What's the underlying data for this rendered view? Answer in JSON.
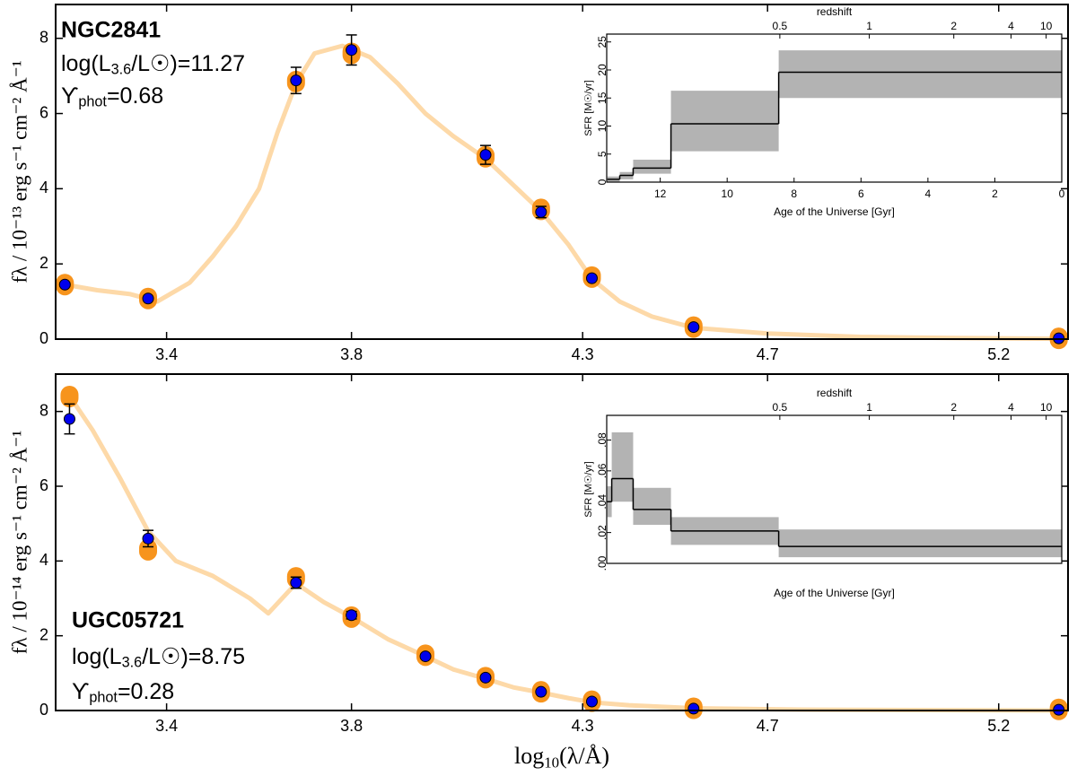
{
  "chart_data": [
    {
      "type": "sed",
      "name_label": "NGC2841",
      "lum_parts": [
        "log(L",
        "3.6",
        "/L☉)=11.27"
      ],
      "ml_parts": [
        "ϒ",
        "phot",
        "=0.68"
      ],
      "ylabel": "fλ / 10⁻¹³ erg s⁻¹ cm⁻² Å⁻¹",
      "xlim": [
        3.16,
        5.35
      ],
      "ylim": [
        0,
        8.9
      ],
      "xticks": [
        3.4,
        3.8,
        4.3,
        4.7,
        5.2
      ],
      "yticks": [
        0,
        2,
        4,
        6,
        8
      ],
      "spectrum": {
        "color": "#fdd9a8",
        "x": [
          3.18,
          3.25,
          3.32,
          3.38,
          3.45,
          3.5,
          3.55,
          3.6,
          3.64,
          3.68,
          3.72,
          3.78,
          3.84,
          3.9,
          3.96,
          4.02,
          4.09,
          4.15,
          4.21,
          4.27,
          4.32,
          4.38,
          4.45,
          4.54,
          4.7,
          4.9,
          5.1,
          5.33
        ],
        "y": [
          1.45,
          1.3,
          1.2,
          1.0,
          1.5,
          2.2,
          3.0,
          4.0,
          5.5,
          6.8,
          7.6,
          7.8,
          7.5,
          6.8,
          6.0,
          5.4,
          4.8,
          4.1,
          3.4,
          2.5,
          1.6,
          1.0,
          0.6,
          0.3,
          0.15,
          0.06,
          0.03,
          0.01
        ]
      },
      "model": {
        "color": "#f7941d",
        "values": [
          1.45,
          1.08,
          6.85,
          7.6,
          4.85,
          3.45,
          1.65,
          0.32,
          0.02
        ]
      },
      "points": {
        "color": "#0000ee",
        "x": [
          3.18,
          3.36,
          3.68,
          3.8,
          4.09,
          4.21,
          4.32,
          4.54,
          5.33
        ],
        "values": [
          1.45,
          1.08,
          6.88,
          7.69,
          4.9,
          3.38,
          1.62,
          0.32,
          0.02
        ],
        "errors": [
          0.05,
          0.05,
          0.35,
          0.4,
          0.25,
          0.15,
          0.05,
          0.03,
          0.01
        ]
      },
      "inset": {
        "type": "step",
        "ylabel": "SFR [M☉/yr]",
        "xlabel": "Age of the Universe [Gyr]",
        "toplabel": "redshift",
        "xlim": [
          13.6,
          0
        ],
        "ylim": [
          0,
          26.4
        ],
        "xticks": [
          12,
          10,
          8,
          6,
          4,
          2,
          0
        ],
        "yticks": [
          0,
          5,
          10,
          15,
          20,
          25
        ],
        "redshift_ticks": [
          0.5,
          1,
          2,
          4,
          10
        ],
        "band_color": "#b3b3b3",
        "line_color": "#000000",
        "bins": [
          13.58,
          13.21,
          12.81,
          11.68,
          8.46,
          0
        ],
        "values": [
          0.5,
          1.2,
          2.5,
          10.4,
          19.6
        ],
        "lower": [
          0,
          0.5,
          1.5,
          5.5,
          15
        ],
        "upper": [
          1,
          1.8,
          4,
          16.3,
          23.5
        ]
      }
    },
    {
      "type": "sed",
      "name_label": "UGC05721",
      "lum_parts": [
        "log(L",
        "3.6",
        "/L☉)=8.75"
      ],
      "ml_parts": [
        "ϒ",
        "phot",
        "=0.28"
      ],
      "ylabel": "fλ / 10⁻¹⁴ erg s⁻¹ cm⁻² Å⁻¹",
      "xlabel_parts": [
        "log",
        "10",
        "(λ/Å)"
      ],
      "xlim": [
        3.16,
        5.35
      ],
      "ylim": [
        0,
        9
      ],
      "xticks": [
        3.4,
        3.8,
        4.3,
        4.7,
        5.2
      ],
      "yticks": [
        0,
        2,
        4,
        6,
        8
      ],
      "spectrum": {
        "color": "#fdd9a8",
        "x": [
          3.18,
          3.24,
          3.3,
          3.36,
          3.42,
          3.5,
          3.58,
          3.62,
          3.68,
          3.74,
          3.8,
          3.88,
          3.96,
          4.02,
          4.09,
          4.15,
          4.21,
          4.27,
          4.32,
          4.4,
          4.54,
          4.8,
          5.33
        ],
        "y": [
          8.6,
          7.5,
          6.2,
          4.8,
          4.0,
          3.6,
          3.0,
          2.6,
          3.4,
          2.9,
          2.5,
          1.9,
          1.45,
          1.1,
          0.85,
          0.62,
          0.48,
          0.33,
          0.22,
          0.14,
          0.06,
          0.02,
          0.0
        ]
      },
      "model": {
        "color": "#f7941d",
        "values": [
          8.4,
          4.3,
          3.55,
          2.5,
          1.48,
          0.88,
          0.5,
          0.25,
          0.06,
          0.03
        ]
      },
      "points": {
        "color": "#0000ee",
        "x": [
          3.19,
          3.36,
          3.68,
          3.8,
          3.96,
          4.09,
          4.21,
          4.32,
          4.54,
          5.33
        ],
        "values": [
          7.8,
          4.6,
          3.42,
          2.55,
          1.45,
          0.88,
          0.5,
          0.24,
          0.05,
          0.02
        ],
        "errors": [
          0.4,
          0.22,
          0.15,
          0.1,
          0.05,
          0.04,
          0.03,
          0.02,
          0.01,
          0.01
        ]
      },
      "inset": {
        "type": "step",
        "ylabel": "SFR [M☉/yr]",
        "xlabel": "Age of the Universe [Gyr]",
        "toplabel": "redshift",
        "xlim": [
          13.6,
          0
        ],
        "ylim": [
          0,
          0.096
        ],
        "yticks": [
          {
            "value": 0,
            "label": ".00"
          },
          {
            "value": 0.02,
            "label": ".02"
          },
          {
            "value": 0.04,
            "label": ".04"
          },
          {
            "value": 0.06,
            "label": ".06"
          },
          {
            "value": 0.08,
            "label": ".08"
          }
        ],
        "redshift_ticks": [
          0.5,
          1,
          2,
          4,
          10
        ],
        "band_color": "#b3b3b3",
        "line_color": "#000000",
        "bins": [
          13.58,
          13.45,
          12.81,
          11.68,
          8.46,
          0
        ],
        "values": [
          0.04,
          0.055,
          0.035,
          0.021,
          0.011
        ],
        "lower": [
          0.03,
          0.04,
          0.025,
          0.012,
          0.004
        ],
        "upper": [
          0.05,
          0.085,
          0.049,
          0.03,
          0.022
        ]
      }
    }
  ]
}
